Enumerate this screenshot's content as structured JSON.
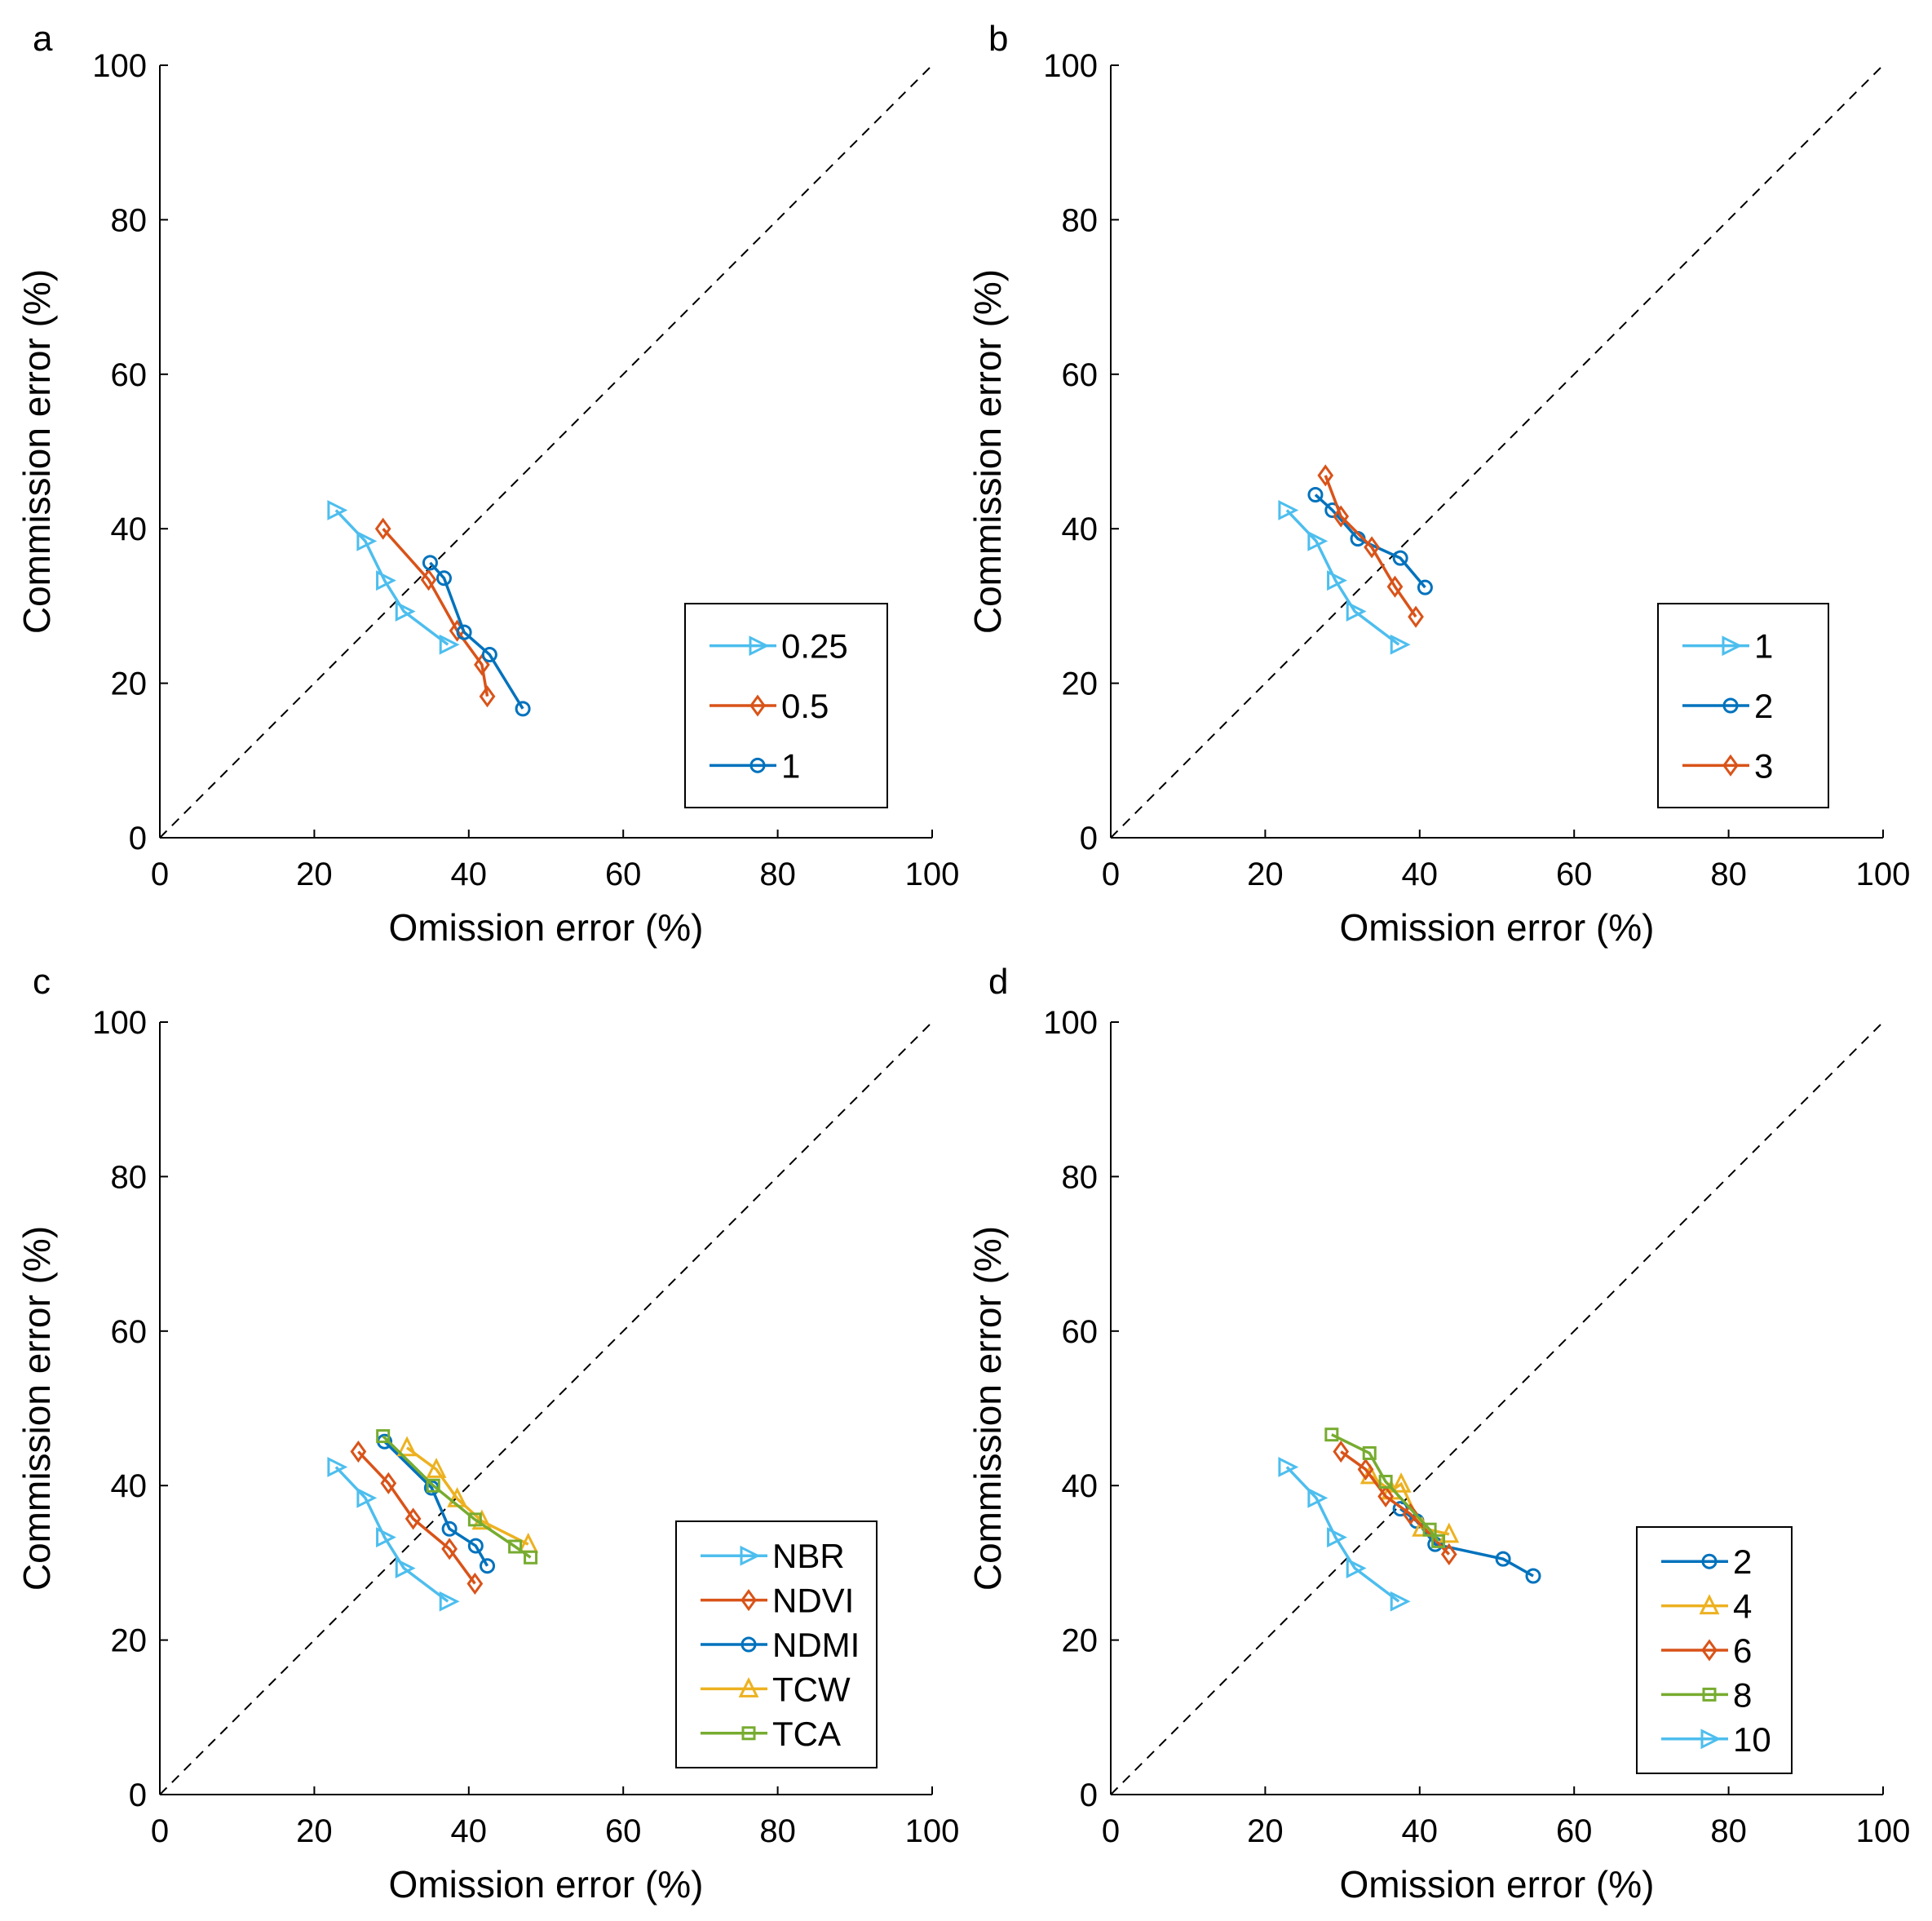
{
  "colors": {
    "light_blue": "#4DBEEE",
    "orange": "#D95319",
    "blue": "#0072BD",
    "yellow": "#EDB120",
    "green": "#77AC30"
  },
  "chart_data": [
    {
      "panel": "a",
      "type": "line",
      "xlabel": "Omission error (%)",
      "ylabel": "Commission error (%)",
      "xlim": [
        0,
        100
      ],
      "ylim": [
        0,
        100
      ],
      "xticks": [
        "0",
        "20",
        "40",
        "60",
        "80",
        "100"
      ],
      "yticks": [
        "0",
        "20",
        "40",
        "60",
        "80",
        "100"
      ],
      "reference_line": "dashed 1:1 diagonal",
      "grid": false,
      "legend_position": "bottom-right",
      "series": [
        {
          "name": "0.25",
          "color": "#4DBEEE",
          "marker": "triangle-right",
          "x": [
            22.8,
            26.6,
            29.1,
            31.6,
            37.3
          ],
          "y": [
            42.4,
            38.4,
            33.3,
            29.3,
            25.0
          ]
        },
        {
          "name": "0.5",
          "color": "#D95319",
          "marker": "diamond",
          "x": [
            28.9,
            34.8,
            38.5,
            41.7,
            42.4
          ],
          "y": [
            40.0,
            33.4,
            26.8,
            22.4,
            18.3
          ]
        },
        {
          "name": "1",
          "color": "#0072BD",
          "marker": "circle",
          "x": [
            35.0,
            36.8,
            39.4,
            42.7,
            47.0
          ],
          "y": [
            35.6,
            33.6,
            26.6,
            23.7,
            16.7
          ]
        }
      ]
    },
    {
      "panel": "b",
      "type": "line",
      "xlabel": "Omission error (%)",
      "ylabel": "Commission error (%)",
      "xlim": [
        0,
        100
      ],
      "ylim": [
        0,
        100
      ],
      "xticks": [
        "0",
        "20",
        "40",
        "60",
        "80",
        "100"
      ],
      "yticks": [
        "0",
        "20",
        "40",
        "60",
        "80",
        "100"
      ],
      "reference_line": "dashed 1:1 diagonal",
      "grid": false,
      "legend_position": "bottom-right",
      "series": [
        {
          "name": "1",
          "color": "#4DBEEE",
          "marker": "triangle-right",
          "x": [
            22.8,
            26.6,
            29.1,
            31.6,
            37.3
          ],
          "y": [
            42.4,
            38.4,
            33.3,
            29.3,
            25.0
          ]
        },
        {
          "name": "2",
          "color": "#0072BD",
          "marker": "circle",
          "x": [
            26.5,
            28.7,
            32.0,
            37.5,
            40.7
          ],
          "y": [
            44.4,
            42.4,
            38.7,
            36.2,
            32.4
          ]
        },
        {
          "name": "3",
          "color": "#D95319",
          "marker": "diamond",
          "x": [
            27.8,
            29.8,
            33.8,
            36.8,
            39.5
          ],
          "y": [
            46.9,
            41.6,
            37.6,
            32.5,
            28.6
          ]
        }
      ]
    },
    {
      "panel": "c",
      "type": "line",
      "xlabel": "Omission error (%)",
      "ylabel": "Commission error (%)",
      "xlim": [
        0,
        100
      ],
      "ylim": [
        0,
        100
      ],
      "xticks": [
        "0",
        "20",
        "40",
        "60",
        "80",
        "100"
      ],
      "yticks": [
        "0",
        "20",
        "40",
        "60",
        "80",
        "100"
      ],
      "reference_line": "dashed 1:1 diagonal",
      "grid": false,
      "legend_position": "bottom-right",
      "series": [
        {
          "name": "NBR",
          "color": "#4DBEEE",
          "marker": "triangle-right",
          "x": [
            22.8,
            26.6,
            29.1,
            31.6,
            37.3
          ],
          "y": [
            42.4,
            38.4,
            33.3,
            29.3,
            25.0
          ]
        },
        {
          "name": "NDVI",
          "color": "#D95319",
          "marker": "diamond",
          "x": [
            25.7,
            29.6,
            32.8,
            37.5,
            40.8
          ],
          "y": [
            44.4,
            40.3,
            35.7,
            31.8,
            27.3
          ]
        },
        {
          "name": "NDMI",
          "color": "#0072BD",
          "marker": "circle",
          "x": [
            29.1,
            35.2,
            37.5,
            40.9,
            42.4
          ],
          "y": [
            45.7,
            39.7,
            34.4,
            32.2,
            29.6
          ]
        },
        {
          "name": "TCW",
          "color": "#EDB120",
          "marker": "triangle-up",
          "x": [
            32.0,
            35.8,
            38.5,
            41.7,
            47.7
          ],
          "y": [
            44.9,
            42.1,
            38.3,
            35.4,
            32.4
          ]
        },
        {
          "name": "TCA",
          "color": "#77AC30",
          "marker": "square",
          "x": [
            28.9,
            35.4,
            40.8,
            46.0,
            48.0
          ],
          "y": [
            46.4,
            40.0,
            35.6,
            32.1,
            30.7
          ]
        }
      ]
    },
    {
      "panel": "d",
      "type": "line",
      "xlabel": "Omission error (%)",
      "ylabel": "Commission error (%)",
      "xlim": [
        0,
        100
      ],
      "ylim": [
        0,
        100
      ],
      "xticks": [
        "0",
        "20",
        "40",
        "60",
        "80",
        "100"
      ],
      "yticks": [
        "0",
        "20",
        "40",
        "60",
        "80",
        "100"
      ],
      "reference_line": "dashed 1:1 diagonal",
      "grid": false,
      "legend_position": "bottom-right",
      "series": [
        {
          "name": "2",
          "color": "#0072BD",
          "marker": "circle",
          "x": [
            37.5,
            39.6,
            42.0,
            50.8,
            54.7
          ],
          "y": [
            37.0,
            35.4,
            32.4,
            30.5,
            28.3
          ]
        },
        {
          "name": "4",
          "color": "#EDB120",
          "marker": "triangle-up",
          "x": [
            33.6,
            36.3,
            37.6,
            40.3,
            43.8
          ],
          "y": [
            41.3,
            39.3,
            40.2,
            34.5,
            33.7
          ]
        },
        {
          "name": "6",
          "color": "#D95319",
          "marker": "diamond",
          "x": [
            29.8,
            33.0,
            35.6,
            38.8,
            43.8
          ],
          "y": [
            44.4,
            42.1,
            38.6,
            36.3,
            31.1
          ]
        },
        {
          "name": "8",
          "color": "#77AC30",
          "marker": "square",
          "x": [
            28.6,
            33.5,
            35.6,
            41.3,
            42.4
          ],
          "y": [
            46.6,
            44.2,
            40.5,
            34.3,
            32.8
          ]
        },
        {
          "name": "10",
          "color": "#4DBEEE",
          "marker": "triangle-right",
          "x": [
            22.8,
            26.6,
            29.1,
            31.6,
            37.3
          ],
          "y": [
            42.4,
            38.4,
            33.3,
            29.3,
            25.0
          ]
        }
      ]
    }
  ]
}
